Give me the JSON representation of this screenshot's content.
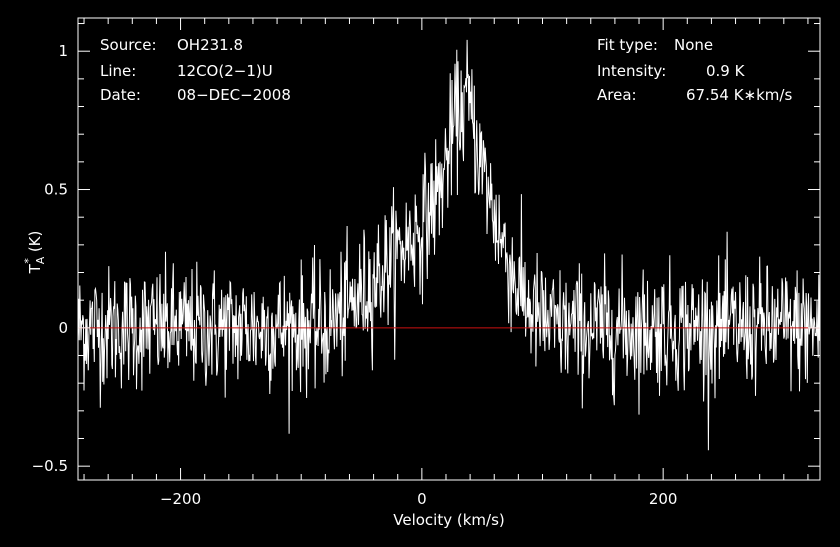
{
  "chart_data": {
    "type": "line",
    "xlabel": "Velocity (km/s)",
    "ylabel_main": "T",
    "ylabel_sup": "*",
    "ylabel_sub": "A",
    "ylabel_unit": "(K)",
    "xlim": [
      -285,
      330
    ],
    "ylim": [
      -0.55,
      1.12
    ],
    "xticks": [
      -200,
      0,
      200
    ],
    "xtick_labels": [
      "−200",
      "0",
      "200"
    ],
    "yticks": [
      -0.5,
      0,
      0.5,
      1
    ],
    "ytick_labels": [
      "−0.5",
      "0",
      "0.5",
      "1"
    ],
    "baseline": 0,
    "baseline_color": "#cc1111",
    "spectrum_color": "#ffffff",
    "profile_points": [
      {
        "x": -285,
        "y": 0.0
      },
      {
        "x": -80,
        "y": 0.0
      },
      {
        "x": -60,
        "y": 0.07
      },
      {
        "x": -40,
        "y": 0.17
      },
      {
        "x": -20,
        "y": 0.27
      },
      {
        "x": 0,
        "y": 0.37
      },
      {
        "x": 15,
        "y": 0.5
      },
      {
        "x": 28,
        "y": 0.75
      },
      {
        "x": 38,
        "y": 0.83
      },
      {
        "x": 50,
        "y": 0.58
      },
      {
        "x": 65,
        "y": 0.33
      },
      {
        "x": 80,
        "y": 0.14
      },
      {
        "x": 95,
        "y": 0.04
      },
      {
        "x": 110,
        "y": 0.0
      },
      {
        "x": 330,
        "y": 0.0
      }
    ],
    "noise_rms": 0.11,
    "channel_width_kms": 0.5
  },
  "info": {
    "source_label": "Source:",
    "source_value": "OH231.8",
    "line_label": "Line:",
    "line_value": "12CO(2−1)U",
    "date_label": "Date:",
    "date_value": "08−DEC−2008",
    "fit_label": "Fit type:",
    "fit_value": "None",
    "intensity_label": "Intensity:",
    "intensity_value": "0.9 K",
    "area_label": "Area:",
    "area_value": "67.54 K∗km/s"
  }
}
